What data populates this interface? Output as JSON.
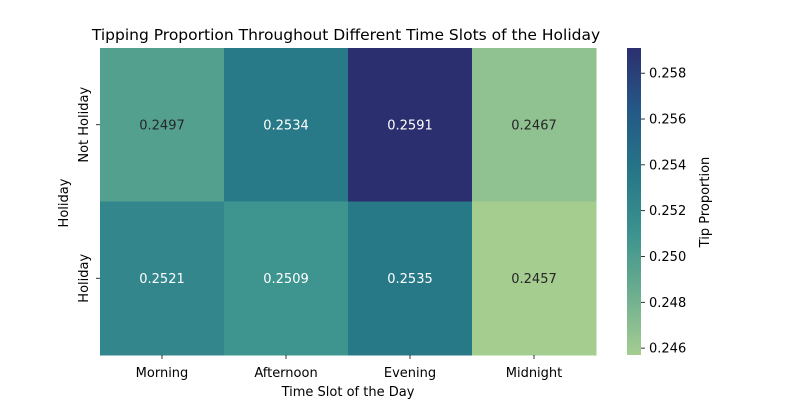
{
  "chart_data": {
    "type": "heatmap",
    "title": "Tipping Proportion Throughout Different Time Slots of the Holiday",
    "xlabel": "Time Slot of the Day",
    "ylabel": "Holiday",
    "x_categories": [
      "Morning",
      "Afternoon",
      "Evening",
      "Midnight"
    ],
    "y_categories": [
      "Not Holiday",
      "Holiday"
    ],
    "values": [
      [
        0.2497,
        0.2534,
        0.2591,
        0.2467
      ],
      [
        0.2521,
        0.2509,
        0.2535,
        0.2457
      ]
    ],
    "value_labels": [
      [
        "0.2497",
        "0.2534",
        "0.2591",
        "0.2467"
      ],
      [
        "0.2521",
        "0.2509",
        "0.2535",
        "0.2457"
      ]
    ],
    "colorbar": {
      "label": "Tip Proportion",
      "range": [
        0.2457,
        0.2591
      ],
      "ticks": [
        0.246,
        0.248,
        0.25,
        0.252,
        0.254,
        0.256,
        0.258
      ],
      "tick_labels": [
        "0.246",
        "0.248",
        "0.250",
        "0.252",
        "0.254",
        "0.256",
        "0.258"
      ],
      "colormap": "crest",
      "colors": [
        "#a5cd90",
        "#6cae8f",
        "#3b928f",
        "#267687",
        "#245886",
        "#2c2f6f"
      ]
    },
    "legend_placement": "right",
    "grid": false
  }
}
